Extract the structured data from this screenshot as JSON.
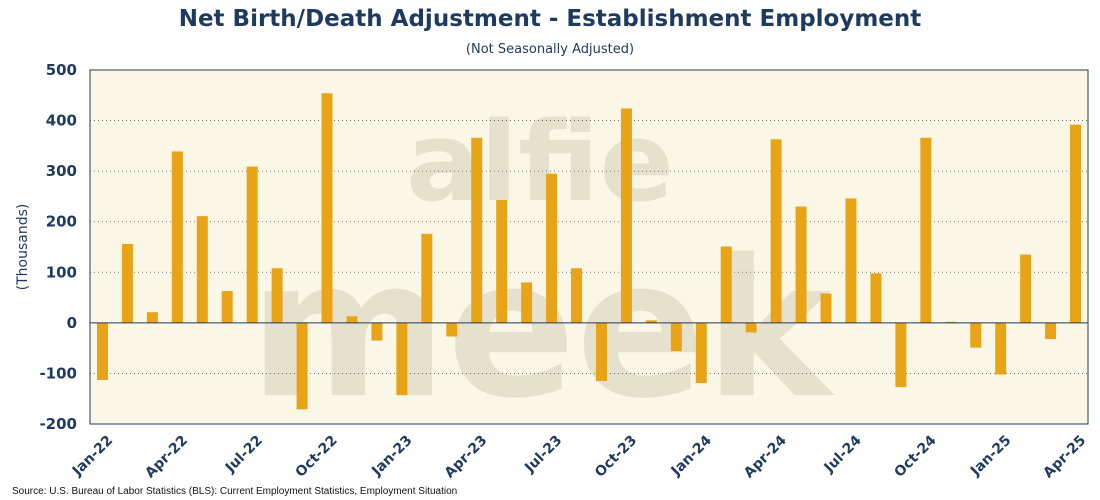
{
  "title": "Net Birth/Death Adjustment - Establishment Employment",
  "subtitle": "(Not Seasonally Adjusted)",
  "source": "Source: U.S. Bureau of Labor Statistics (BLS): Current Employment Statistics, Employment Situation",
  "watermark": {
    "line1": "alfie",
    "line2": "meek"
  },
  "colors": {
    "bar": "#e8a316",
    "plot_bg": "#faf7e6",
    "text": "#1f3a5f"
  },
  "chart_data": {
    "type": "bar",
    "title": "Net Birth/Death Adjustment - Establishment Employment",
    "subtitle": "(Not Seasonally Adjusted)",
    "xlabel": "",
    "ylabel": "(Thousands)",
    "ylim": [
      -200,
      500
    ],
    "yticks": [
      -200,
      -100,
      0,
      100,
      200,
      300,
      400,
      500
    ],
    "grid": true,
    "categories": [
      "Jan-22",
      "Feb-22",
      "Mar-22",
      "Apr-22",
      "May-22",
      "Jun-22",
      "Jul-22",
      "Aug-22",
      "Sep-22",
      "Oct-22",
      "Nov-22",
      "Dec-22",
      "Jan-23",
      "Feb-23",
      "Mar-23",
      "Apr-23",
      "May-23",
      "Jun-23",
      "Jul-23",
      "Aug-23",
      "Sep-23",
      "Oct-23",
      "Nov-23",
      "Dec-23",
      "Jan-24",
      "Feb-24",
      "Mar-24",
      "Apr-24",
      "May-24",
      "Jun-24",
      "Jul-24",
      "Aug-24",
      "Sep-24",
      "Oct-24",
      "Nov-24",
      "Dec-24",
      "Jan-25",
      "Feb-25",
      "Mar-25",
      "Apr-25"
    ],
    "tick_labels": [
      "Jan-22",
      "Apr-22",
      "Jul-22",
      "Oct-22",
      "Jan-23",
      "Apr-23",
      "Jul-23",
      "Oct-23",
      "Jan-24",
      "Apr-24",
      "Jul-24",
      "Oct-24",
      "Jan-25",
      "Apr-25"
    ],
    "values": [
      -113,
      156,
      21,
      339,
      211,
      63,
      309,
      108,
      -171,
      454,
      13,
      -35,
      -143,
      176,
      -27,
      366,
      243,
      80,
      295,
      108,
      -115,
      424,
      5,
      -56,
      -119,
      151,
      -19,
      363,
      230,
      58,
      246,
      98,
      -127,
      366,
      2,
      -49,
      -102,
      135,
      -32,
      392
    ]
  }
}
